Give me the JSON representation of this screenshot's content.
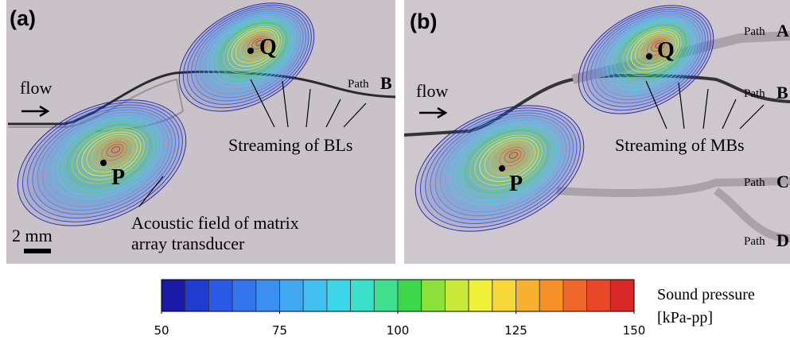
{
  "panels": [
    {
      "label": "(a)",
      "points": [
        "Q",
        "P"
      ],
      "flow": "flow",
      "paths": [
        {
          "prefix": "Path",
          "letter": "B"
        }
      ],
      "annotations": [
        "Streaming of BLs",
        "Acoustic field of matrix",
        "array transducer"
      ],
      "scale_bar": "2 mm"
    },
    {
      "label": "(b)",
      "points": [
        "Q",
        "P"
      ],
      "flow": "flow",
      "paths": [
        {
          "prefix": "Path",
          "letter": "A"
        },
        {
          "prefix": "Path",
          "letter": "B"
        },
        {
          "prefix": "Path",
          "letter": "C"
        },
        {
          "prefix": "Path",
          "letter": "D"
        }
      ],
      "annotations": [
        "Streaming of MBs"
      ]
    }
  ],
  "colorbar": {
    "lim": [
      50,
      150
    ],
    "ticks": [
      50,
      75,
      100,
      125,
      150
    ],
    "label": [
      "Sound pressure",
      "[kPa-pp]"
    ],
    "colors": [
      "#1a1aa8",
      "#1e3ccf",
      "#2a5ae6",
      "#3275ee",
      "#3a8ff0",
      "#40a8f0",
      "#3fc0ef",
      "#3cd6e8",
      "#3ae0c8",
      "#40e090",
      "#3cd84a",
      "#8ce03a",
      "#c8e83a",
      "#f0f03a",
      "#f8d838",
      "#f8b030",
      "#f89028",
      "#f06828",
      "#e84828",
      "#d82828"
    ]
  }
}
